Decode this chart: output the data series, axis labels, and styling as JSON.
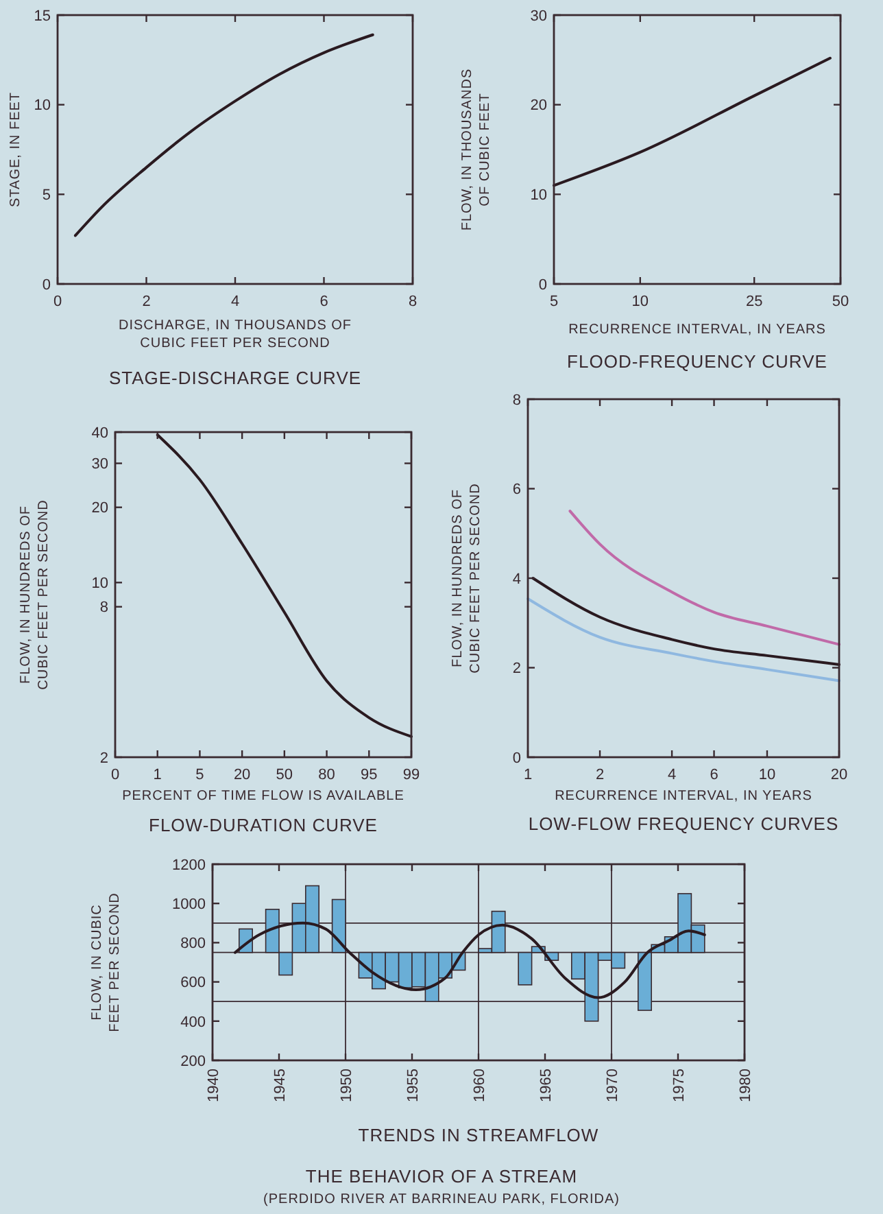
{
  "chart_data": [
    {
      "type": "line",
      "title": "STAGE-DISCHARGE CURVE",
      "xlabel": "DISCHARGE, IN THOUSANDS OF\nCUBIC FEET PER SECOND",
      "ylabel": "STAGE, IN FEET",
      "xlim": [
        0,
        8
      ],
      "xticks": [
        0,
        2,
        4,
        6,
        8
      ],
      "ylim": [
        0,
        15
      ],
      "yticks": [
        0,
        5,
        10,
        15
      ],
      "grid": false,
      "series": [
        {
          "color": "#2a1a20",
          "x": [
            0.4,
            1,
            2,
            3,
            4,
            5,
            6,
            7.1
          ],
          "values": [
            2.7,
            4.3,
            6.5,
            8.5,
            10.2,
            11.7,
            12.9,
            13.9
          ]
        }
      ]
    },
    {
      "type": "line",
      "title": "FLOOD-FREQUENCY CURVE",
      "xlabel": "RECURRENCE INTERVAL, IN YEARS",
      "ylabel": "FLOW, IN THOUSANDS\nOF CUBIC FEET",
      "log": "x",
      "xlim": [
        5,
        50
      ],
      "xticks": [
        5,
        10,
        25,
        50
      ],
      "ylim": [
        0,
        30
      ],
      "yticks": [
        0,
        10,
        20,
        30
      ],
      "grid": false,
      "series": [
        {
          "color": "#2a1a20",
          "x": [
            5,
            10,
            25,
            46
          ],
          "values": [
            11,
            14.7,
            21,
            25.2
          ]
        }
      ]
    },
    {
      "type": "line",
      "title": "FLOW-DURATION CURVE",
      "xlabel": "PERCENT OF TIME FLOW IS AVAILABLE",
      "ylabel": "FLOW, IN HUNDREDS OF\nCUBIC FEET PER SECOND",
      "log": "y",
      "categories": [
        "0",
        "1",
        "5",
        "20",
        "50",
        "80",
        "95",
        "99"
      ],
      "ylim": [
        2,
        40
      ],
      "yticks": [
        2,
        8,
        10,
        20,
        30,
        40
      ],
      "grid": false,
      "series": [
        {
          "color": "#2a1a20",
          "values": [
            null,
            39,
            25.8,
            14.3,
            7.6,
            4.04,
            2.88,
            2.42
          ]
        }
      ]
    },
    {
      "type": "line",
      "title": "LOW-FLOW FREQUENCY CURVES",
      "xlabel": "RECURRENCE INTERVAL, IN YEARS",
      "ylabel": "FLOW, IN HUNDREDS OF\nCUBIC FEET PER SECOND",
      "log": "x",
      "xlim": [
        1,
        20
      ],
      "xticks": [
        1,
        2,
        4,
        6,
        10,
        20
      ],
      "ylim": [
        0,
        8
      ],
      "yticks": [
        0,
        2,
        4,
        6,
        8
      ],
      "grid": false,
      "series": [
        {
          "color": "#c06aa8",
          "x": [
            1.5,
            2,
            4,
            6,
            10,
            20
          ],
          "values": [
            5.5,
            4.76,
            3.69,
            3.24,
            2.93,
            2.52
          ]
        },
        {
          "color": "#2a1a20",
          "x": [
            1.05,
            2,
            4,
            6,
            10,
            20
          ],
          "values": [
            4,
            3.13,
            2.63,
            2.42,
            2.27,
            2.07
          ]
        },
        {
          "color": "#8fb8e0",
          "x": [
            1,
            2,
            4,
            6,
            10,
            20
          ],
          "values": [
            3.54,
            2.68,
            2.32,
            2.14,
            1.96,
            1.71
          ]
        }
      ]
    },
    {
      "type": "bar",
      "title": "TRENDS IN STREAMFLOW",
      "ylabel": "FLOW, IN CUBIC\nFEET PER SECOND",
      "xlim": [
        1940,
        1980
      ],
      "xticks": [
        1940,
        1945,
        1950,
        1955,
        1960,
        1965,
        1970,
        1975,
        1980
      ],
      "ylim": [
        200,
        1200
      ],
      "yticks": [
        200,
        400,
        600,
        800,
        1000,
        1200
      ],
      "grid": false,
      "series": [
        {
          "color": "#6aaed6",
          "x": [
            1942.5,
            1944.5,
            1945.5,
            1946.5,
            1947.5,
            1949.5,
            1951.5,
            1952.5,
            1953.5,
            1954.5,
            1955.5,
            1956.5,
            1957.5,
            1958.5,
            1960.5,
            1961.5,
            1963.5,
            1964.5,
            1965.5,
            1967.5,
            1968.5,
            1969.5,
            1970.5,
            1972.5,
            1973.5,
            1974.5,
            1975.5,
            1976.5
          ],
          "base": [
            750,
            750,
            750,
            750,
            750,
            750,
            750,
            750,
            750,
            750,
            750,
            750,
            750,
            750,
            750,
            750,
            750,
            750,
            750,
            750,
            750,
            750,
            750,
            750,
            750,
            750,
            750,
            750
          ],
          "values": [
            120,
            220,
            -115,
            250,
            340,
            270,
            -130,
            -185,
            -150,
            -180,
            -175,
            -250,
            -130,
            -90,
            20,
            210,
            -165,
            30,
            -40,
            -135,
            -350,
            -40,
            -80,
            -295,
            40,
            80,
            300,
            140
          ]
        },
        {
          "type": "line",
          "color": "#2a1a20",
          "x": [
            1941.7,
            1943.5,
            1946.8,
            1948.5,
            1950.3,
            1952,
            1955.3,
            1957.5,
            1958.8,
            1960,
            1961.8,
            1964,
            1966.5,
            1969,
            1971,
            1972.7,
            1974.3,
            1975.8,
            1977
          ],
          "values": [
            750,
            840,
            900,
            870,
            750,
            650,
            560,
            620,
            750,
            840,
            890,
            820,
            620,
            520,
            600,
            750,
            810,
            860,
            840
          ]
        }
      ],
      "ref_lines": [
        {
          "axis": "x",
          "value": 1950,
          "color": "#3a2a30"
        },
        {
          "axis": "x",
          "value": 1960,
          "color": "#3a2a30"
        },
        {
          "axis": "x",
          "value": 1970,
          "color": "#3a2a30"
        },
        {
          "axis": "y",
          "value": 900,
          "color": "#3a2a30"
        },
        {
          "axis": "y",
          "value": 750,
          "color": "#3a2a30"
        },
        {
          "axis": "y",
          "value": 500,
          "color": "#3a2a30"
        }
      ],
      "annotations": [
        "THE BEHAVIOR OF A STREAM",
        "(PERDIDO RIVER AT BARRINEAU PARK, FLORIDA)"
      ]
    }
  ]
}
